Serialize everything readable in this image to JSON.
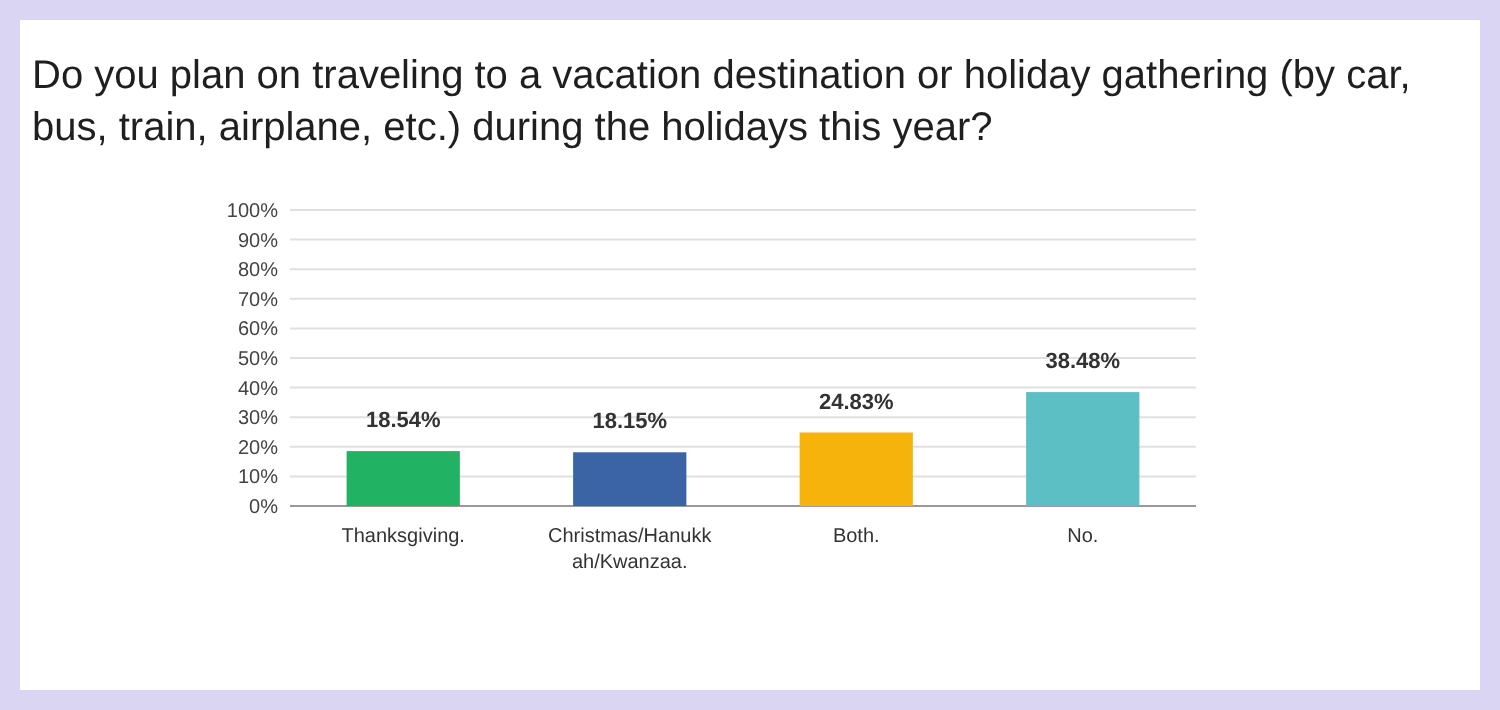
{
  "chart_data": {
    "type": "bar",
    "title": "Do you plan on traveling to a vacation destination or holiday gathering (by car, bus, train, airplane, etc.) during the holidays this year?",
    "categories": [
      "Thanksgiving.",
      "Christmas/Hanukkah/Kwanzaa.",
      "Both.",
      "No."
    ],
    "values": [
      18.54,
      18.15,
      24.83,
      38.48
    ],
    "colors": [
      "#21b363",
      "#3a64a6",
      "#f5b30c",
      "#5bbfc3"
    ],
    "value_labels": [
      "18.54%",
      "18.15%",
      "24.83%",
      "38.48%"
    ],
    "ylim": [
      0,
      100
    ],
    "yticks": [
      {
        "value": 0,
        "label": "0%"
      },
      {
        "value": 10,
        "label": "10%"
      },
      {
        "value": 20,
        "label": "20%"
      },
      {
        "value": 30,
        "label": "30%"
      },
      {
        "value": 40,
        "label": "40%"
      },
      {
        "value": 50,
        "label": "50%"
      },
      {
        "value": 60,
        "label": "60%"
      },
      {
        "value": 70,
        "label": "70%"
      },
      {
        "value": 80,
        "label": "80%"
      },
      {
        "value": 90,
        "label": "90%"
      },
      {
        "value": 100,
        "label": "100%"
      }
    ],
    "grid": "y"
  }
}
